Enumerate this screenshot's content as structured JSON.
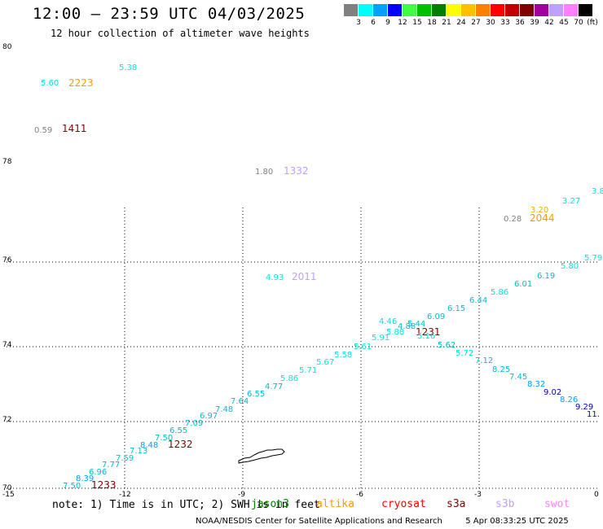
{
  "header": {
    "title": "12:00 – 23:59 UTC 04/03/2025",
    "subtitle": "12 hour collection of altimeter wave heights"
  },
  "legend": {
    "unit": "(ft)",
    "items": [
      {
        "label": "3",
        "color": "#808080"
      },
      {
        "label": "6",
        "color": "#00ffff"
      },
      {
        "label": "9",
        "color": "#00a0ff"
      },
      {
        "label": "12",
        "color": "#0000ff"
      },
      {
        "label": "15",
        "color": "#40ff40"
      },
      {
        "label": "18",
        "color": "#00c000"
      },
      {
        "label": "21",
        "color": "#008000"
      },
      {
        "label": "24",
        "color": "#ffff00"
      },
      {
        "label": "27",
        "color": "#ffc000"
      },
      {
        "label": "30",
        "color": "#ff8000"
      },
      {
        "label": "33",
        "color": "#ff0000"
      },
      {
        "label": "36",
        "color": "#c00000"
      },
      {
        "label": "39",
        "color": "#800000"
      },
      {
        "label": "42",
        "color": "#a000a0"
      },
      {
        "label": "45",
        "color": "#c0a0ff"
      },
      {
        "label": "70",
        "color": "#ff80ff"
      },
      {
        "label": "",
        "color": "#000000"
      }
    ]
  },
  "axes": {
    "lat_labels": [
      "80",
      "78",
      "76",
      "74",
      "72",
      "70"
    ],
    "lon_labels": [
      "-15",
      "-12",
      "-9",
      "-6",
      "-3",
      "0"
    ]
  },
  "observations": [
    {
      "text": "5.38",
      "color": "#00e5e5"
    },
    {
      "text": "5.60",
      "color": "#00e5e5"
    },
    {
      "text": "2223",
      "color": "#ff9900"
    },
    {
      "text": "0.59",
      "color": "#808080"
    },
    {
      "text": "1411",
      "color": "#800000"
    },
    {
      "text": "1.80",
      "color": "#808080"
    },
    {
      "text": "1332",
      "color": "#c0a0ff"
    },
    {
      "text": "3.8",
      "color": "#00e5e5"
    },
    {
      "text": "3.27",
      "color": "#00e5e5"
    },
    {
      "text": "3.20",
      "color": "#ffaa00"
    },
    {
      "text": "0.28",
      "color": "#808080"
    },
    {
      "text": "2044",
      "color": "#ff9900"
    },
    {
      "text": "5.79",
      "color": "#00e5e5"
    },
    {
      "text": "5.80",
      "color": "#00e5e5"
    },
    {
      "text": "6.19",
      "color": "#00bcd4"
    },
    {
      "text": "6.01",
      "color": "#00bcd4"
    },
    {
      "text": "5.86",
      "color": "#00e5e5"
    },
    {
      "text": "6.44",
      "color": "#00bcd4"
    },
    {
      "text": "6.15",
      "color": "#00bcd4"
    },
    {
      "text": "6.09",
      "color": "#00bcd4"
    },
    {
      "text": "4.93",
      "color": "#00e5e5"
    },
    {
      "text": "2011",
      "color": "#c0a0ff"
    },
    {
      "text": "4.46",
      "color": "#00e5e5"
    },
    {
      "text": "5.44",
      "color": "#00bcd4"
    },
    {
      "text": "4.88",
      "color": "#00bcd4"
    },
    {
      "text": "5.88",
      "color": "#00e5e5"
    },
    {
      "text": "1231",
      "color": "#800000"
    },
    {
      "text": "5.91",
      "color": "#00e5e5"
    },
    {
      "text": "5.16",
      "color": "#00e5e5"
    },
    {
      "text": "5.62",
      "color": "#00bcd4"
    },
    {
      "text": "5.61",
      "color": "#00e5e5"
    },
    {
      "text": "5.72",
      "color": "#00e5e5"
    },
    {
      "text": "7.12",
      "color": "#00bcd4"
    },
    {
      "text": "5.58",
      "color": "#00e5e5"
    },
    {
      "text": "8.25",
      "color": "#00bcd4"
    },
    {
      "text": "5.67",
      "color": "#00e5e5"
    },
    {
      "text": "7.45",
      "color": "#00bcd4"
    },
    {
      "text": "5.71",
      "color": "#00e5e5"
    },
    {
      "text": "8.32",
      "color": "#00a0ff"
    },
    {
      "text": "5.86",
      "color": "#00e5e5"
    },
    {
      "text": "9.02",
      "color": "#0000cc"
    },
    {
      "text": "4.77",
      "color": "#00bcd4"
    },
    {
      "text": "8.26",
      "color": "#00a0ff"
    },
    {
      "text": "6.55",
      "color": "#00bcd4"
    },
    {
      "text": "7.64",
      "color": "#00bcd4"
    },
    {
      "text": "9.29",
      "color": "#0000cc"
    },
    {
      "text": "11.",
      "color": "#0000cc"
    },
    {
      "text": "7.48",
      "color": "#00bcd4"
    },
    {
      "text": "6.97",
      "color": "#00bcd4"
    },
    {
      "text": "7.09",
      "color": "#00bcd4"
    },
    {
      "text": "6.55",
      "color": "#00bcd4"
    },
    {
      "text": "7.50",
      "color": "#00bcd4"
    },
    {
      "text": "1232",
      "color": "#800000"
    },
    {
      "text": "8.48",
      "color": "#00a0ff"
    },
    {
      "text": "7.13",
      "color": "#00bcd4"
    },
    {
      "text": "7.59",
      "color": "#00bcd4"
    },
    {
      "text": "7.77",
      "color": "#00bcd4"
    },
    {
      "text": "6.96",
      "color": "#00bcd4"
    },
    {
      "text": "8.39",
      "color": "#00a0ff"
    },
    {
      "text": "7.50",
      "color": "#00bcd4"
    },
    {
      "text": "1233",
      "color": "#800000"
    }
  ],
  "note": {
    "text": "note: 1) Time is in UTC; 2) SWH is in feet",
    "satellites": [
      {
        "name": "jason3",
        "color": "#008000"
      },
      {
        "name": "altika",
        "color": "#ff9900"
      },
      {
        "name": "cryosat",
        "color": "#ff0000"
      },
      {
        "name": "s3a",
        "color": "#800000"
      },
      {
        "name": "s3b",
        "color": "#c0a0ff"
      },
      {
        "name": "swot",
        "color": "#ff80ff"
      }
    ]
  },
  "footer": {
    "credit": "NOAA/NESDIS Center for Satellite Applications and Research",
    "timestamp": "5 Apr 08:33:25 UTC 2025"
  }
}
